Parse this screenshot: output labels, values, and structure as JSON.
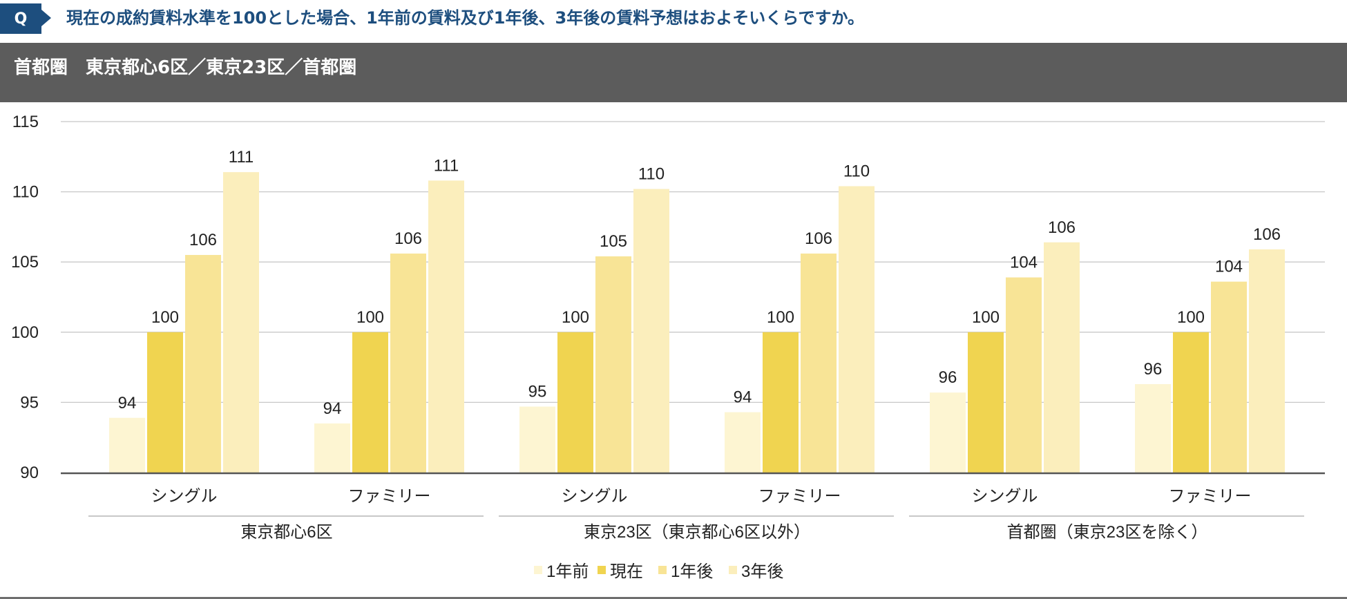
{
  "question": {
    "badge": "Q",
    "text": "現在の成約賃料水準を100とした場合、1年前の賃料及び1年後、3年後の賃料予想はおよそいくらですか。"
  },
  "header": {
    "title": "首都圏　東京都心6区／東京23区／首都圏"
  },
  "chart_data": {
    "type": "bar",
    "categories": [
      "シングル",
      "ファミリー",
      "シングル",
      "ファミリー",
      "シングル",
      "ファミリー"
    ],
    "groups": [
      {
        "label": "東京都心6区",
        "categories": [
          0,
          1
        ]
      },
      {
        "label": "東京23区（東京都心6区以外）",
        "categories": [
          2,
          3
        ]
      },
      {
        "label": "首都圏（東京23区を除く）",
        "categories": [
          4,
          5
        ]
      }
    ],
    "series": [
      {
        "name": "1年前",
        "color": "#fdf5d2",
        "values": [
          93.9,
          93.5,
          94.7,
          94.3,
          95.7,
          96.3
        ],
        "labels": [
          "94",
          "94",
          "95",
          "94",
          "96",
          "96"
        ]
      },
      {
        "name": "現在",
        "color": "#f0d450",
        "values": [
          100,
          100,
          100,
          100,
          100,
          100
        ],
        "labels": [
          "100",
          "100",
          "100",
          "100",
          "100",
          "100"
        ]
      },
      {
        "name": "1年後",
        "color": "#f8e496",
        "values": [
          105.5,
          105.6,
          105.4,
          105.6,
          103.9,
          103.6
        ],
        "labels": [
          "106",
          "106",
          "105",
          "106",
          "104",
          "104"
        ]
      },
      {
        "name": "3年後",
        "color": "#fbeebc",
        "values": [
          111.4,
          110.8,
          110.2,
          110.4,
          106.4,
          105.9
        ],
        "labels": [
          "111",
          "111",
          "110",
          "110",
          "106",
          "106"
        ]
      }
    ],
    "ylim": [
      90,
      115
    ],
    "yticks": [
      "90",
      "95",
      "100",
      "105",
      "110",
      "115"
    ],
    "grid": true,
    "legend": "bottom-center"
  }
}
